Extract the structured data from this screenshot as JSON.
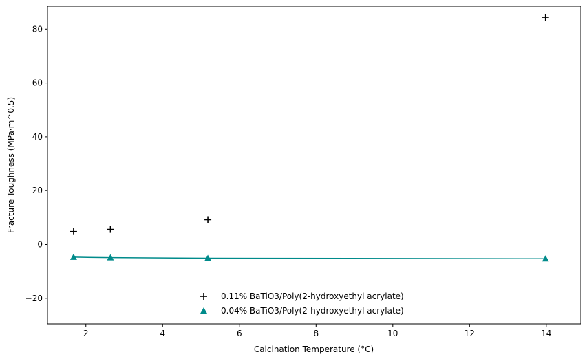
{
  "chart_data": {
    "type": "scatter",
    "xlabel": "Calcination Temperature (°C)",
    "ylabel": "Fracture Toughness (MPa·m^0.5)",
    "xlim": [
      1.0,
      14.9
    ],
    "ylim": [
      -29.5,
      88.5
    ],
    "xticks": [
      2,
      4,
      6,
      8,
      10,
      12,
      14
    ],
    "yticks": [
      -20,
      0,
      20,
      40,
      60,
      80
    ],
    "xtick_labels": [
      "2",
      "4",
      "6",
      "8",
      "10",
      "12",
      "14"
    ],
    "ytick_labels": [
      "−20",
      "0",
      "20",
      "40",
      "60",
      "80"
    ],
    "grid": false,
    "legend_position": "lower-center",
    "series": [
      {
        "name": "0.11% BaTiO3/Poly(2-hydroxyethyl acrylate)",
        "marker": "plus",
        "color": "#000000",
        "line": false,
        "x": [
          1.68,
          2.64,
          5.18,
          13.98
        ],
        "y": [
          4.8,
          5.6,
          9.2,
          84.4
        ]
      },
      {
        "name": "0.04% BaTiO3/Poly(2-hydroxyethyl acrylate)",
        "marker": "triangle",
        "color": "#008b8b",
        "line": true,
        "x": [
          1.68,
          2.64,
          5.18,
          13.98
        ],
        "y": [
          -4.7,
          -4.9,
          -5.1,
          -5.3
        ]
      }
    ]
  }
}
